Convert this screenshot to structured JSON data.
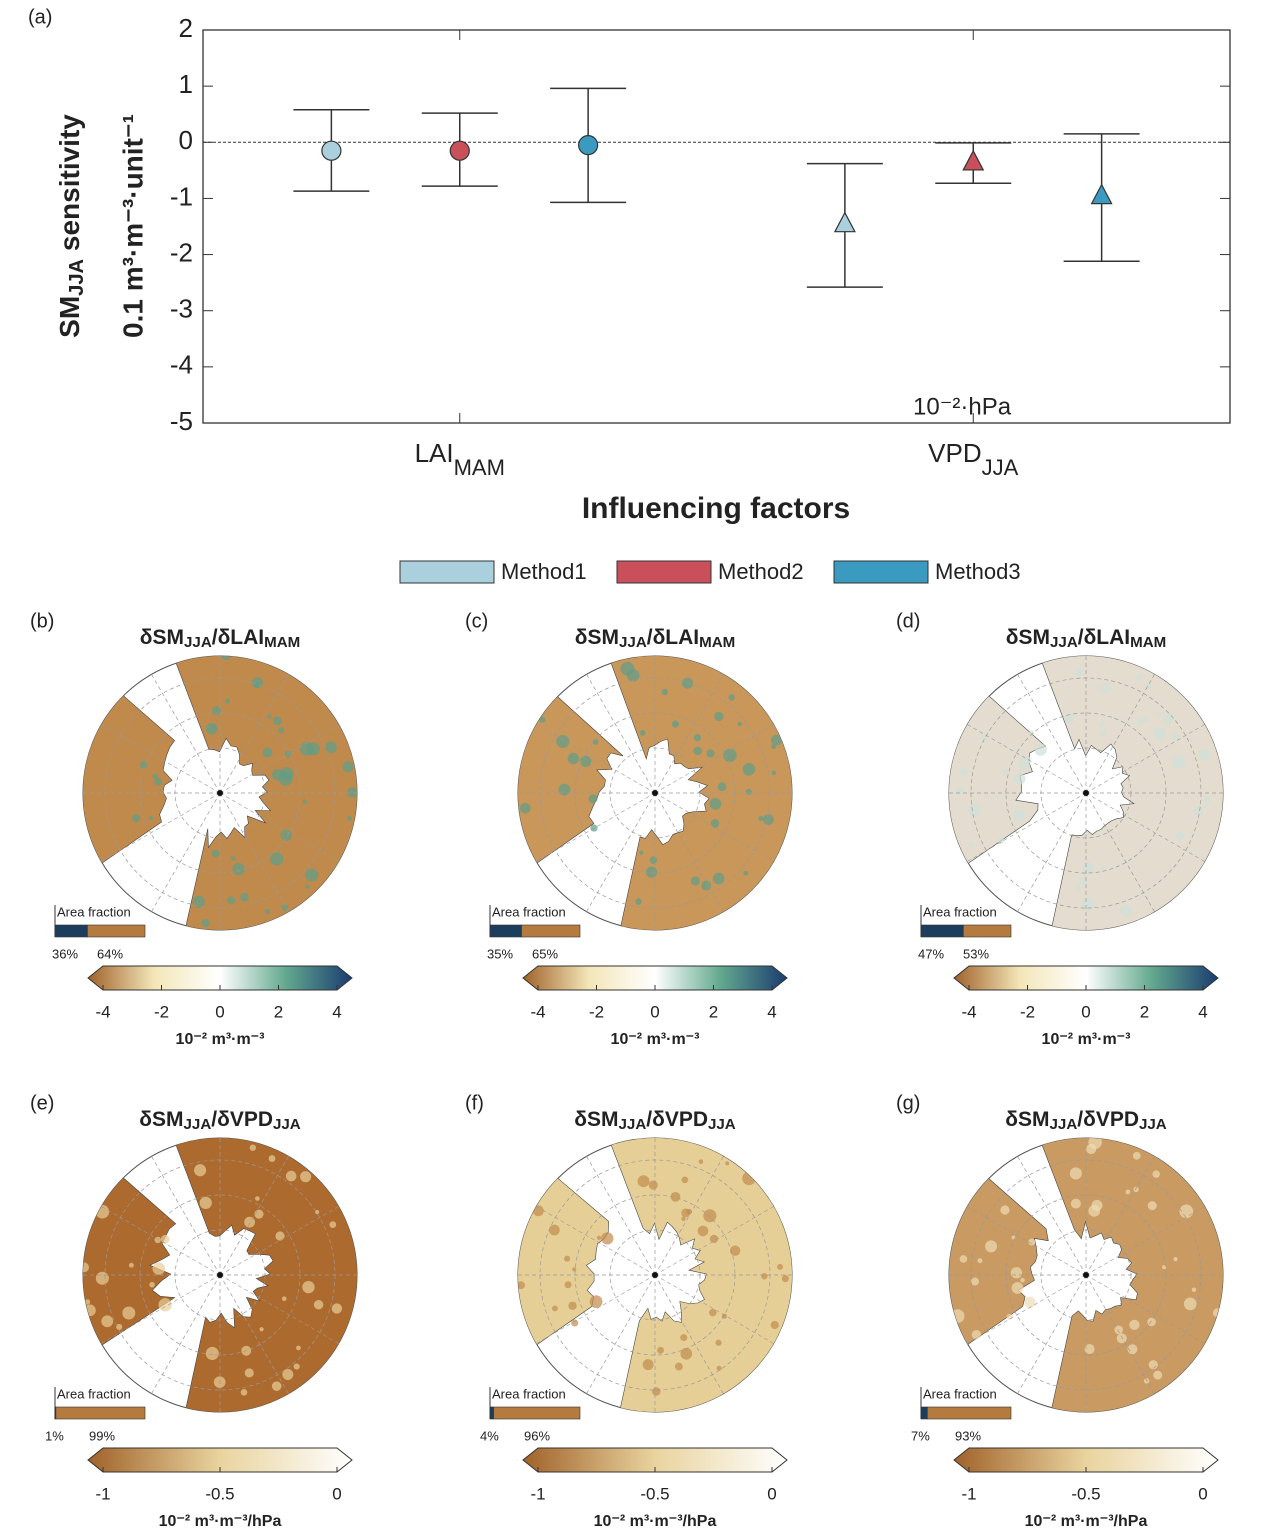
{
  "chart_data": {
    "type": "errorbar",
    "label": "(a)",
    "categories": [
      {
        "base": "LAI",
        "sub": "MAM"
      },
      {
        "base": "VPD",
        "sub": "JJA"
      }
    ],
    "markers": [
      "circle",
      "triangle"
    ],
    "series": [
      {
        "name": "Method1",
        "color": "#a9d0dc",
        "values": [
          -0.15,
          -1.45
        ],
        "upper": [
          0.58,
          -0.38
        ],
        "lower": [
          -0.87,
          -2.58
        ]
      },
      {
        "name": "Method2",
        "color": "#c9505a",
        "values": [
          -0.15,
          -0.35
        ],
        "upper": [
          0.52,
          -0.01
        ],
        "lower": [
          -0.78,
          -0.73
        ]
      },
      {
        "name": "Method3",
        "color": "#3a9ac0",
        "values": [
          -0.05,
          -0.95
        ],
        "upper": [
          0.96,
          0.15
        ],
        "lower": [
          -1.07,
          -2.12
        ]
      }
    ],
    "ylim": [
      -5,
      2
    ],
    "yticks": [
      -5,
      -4,
      -3,
      -2,
      -1,
      0,
      1,
      2
    ],
    "ylabel": {
      "line1": [
        "SM",
        "JJA",
        " sensitivity"
      ],
      "line2": "0.1 m³·m⁻³·unit⁻¹"
    },
    "xlabel": "Influencing factors",
    "annotation": "10⁻²·hPa",
    "zero_line": true
  },
  "maps": [
    {
      "label": "(b)",
      "title": [
        "δSM",
        "JJA",
        "/δLAI",
        "MAM"
      ],
      "land_color": "#c08a4c",
      "speckle_color": "#5e9e8a",
      "fractions": [
        36,
        64
      ],
      "fraction_labels": [
        "36%",
        "64%"
      ],
      "fraction_colors": [
        "#1d3d5c",
        "#b57a3e"
      ],
      "colorbar": {
        "lim": [
          -4,
          4
        ],
        "ticks": [
          -4,
          -2,
          0,
          2,
          4
        ],
        "colors": [
          "#a0622a",
          "#f3e6b8",
          "#ffffff",
          "#62a88f",
          "#1b3c70"
        ],
        "unit": "10⁻² m³·m⁻³"
      }
    },
    {
      "label": "(c)",
      "title": [
        "δSM",
        "JJA",
        "/δLAI",
        "MAM"
      ],
      "land_color": "#c9975a",
      "speckle_color": "#5e9e8a",
      "fractions": [
        35,
        65
      ],
      "fraction_labels": [
        "35%",
        "65%"
      ],
      "fraction_colors": [
        "#1d3d5c",
        "#b57a3e"
      ],
      "colorbar": {
        "lim": [
          -4,
          4
        ],
        "ticks": [
          -4,
          -2,
          0,
          2,
          4
        ],
        "colors": [
          "#a0622a",
          "#f3e6b8",
          "#ffffff",
          "#62a88f",
          "#1b3c70"
        ],
        "unit": "10⁻² m³·m⁻³"
      }
    },
    {
      "label": "(d)",
      "title": [
        "δSM",
        "JJA",
        "/δLAI",
        "MAM"
      ],
      "land_color": "#e4ddcf",
      "speckle_color": "#cfe0d8",
      "fractions": [
        47,
        53
      ],
      "fraction_labels": [
        "47%",
        "53%"
      ],
      "fraction_colors": [
        "#1d3d5c",
        "#b57a3e"
      ],
      "colorbar": {
        "lim": [
          -4,
          4
        ],
        "ticks": [
          -4,
          -2,
          0,
          2,
          4
        ],
        "colors": [
          "#a0622a",
          "#f3e6b8",
          "#ffffff",
          "#62a88f",
          "#1b3c70"
        ],
        "unit": "10⁻² m³·m⁻³"
      }
    },
    {
      "label": "(e)",
      "title": [
        "δSM",
        "JJA",
        "/δVPD",
        "JJA"
      ],
      "land_color": "#ad6a2e",
      "speckle_color": "#e8cf98",
      "fractions": [
        1,
        99
      ],
      "fraction_labels": [
        "1%",
        "99%"
      ],
      "fraction_colors": [
        "#1d3d5c",
        "#b57a3e"
      ],
      "colorbar": {
        "lim": [
          -1,
          0
        ],
        "ticks": [
          -1,
          -0.5,
          0
        ],
        "colors": [
          "#a0622a",
          "#e9d39e",
          "#ffffff"
        ],
        "unit": "10⁻² m³·m⁻³/hPa"
      }
    },
    {
      "label": "(f)",
      "title": [
        "δSM",
        "JJA",
        "/δVPD",
        "JJA"
      ],
      "land_color": "#e6cf96",
      "speckle_color": "#c08a4c",
      "fractions": [
        4,
        96
      ],
      "fraction_labels": [
        "4%",
        "96%"
      ],
      "fraction_colors": [
        "#1d3d5c",
        "#b57a3e"
      ],
      "colorbar": {
        "lim": [
          -1,
          0
        ],
        "ticks": [
          -1,
          -0.5,
          0
        ],
        "colors": [
          "#a0622a",
          "#e9d39e",
          "#ffffff"
        ],
        "unit": "10⁻² m³·m⁻³/hPa"
      }
    },
    {
      "label": "(g)",
      "title": [
        "δSM",
        "JJA",
        "/δVPD",
        "JJA"
      ],
      "land_color": "#c99a62",
      "speckle_color": "#eedcb4",
      "fractions": [
        7,
        93
      ],
      "fraction_labels": [
        "7%",
        "93%"
      ],
      "fraction_colors": [
        "#1d3d5c",
        "#b57a3e"
      ],
      "colorbar": {
        "lim": [
          -1,
          0
        ],
        "ticks": [
          -1,
          -0.5,
          0
        ],
        "colors": [
          "#a0622a",
          "#e9d39e",
          "#ffffff"
        ],
        "unit": "10⁻² m³·m⁻³/hPa"
      }
    }
  ]
}
